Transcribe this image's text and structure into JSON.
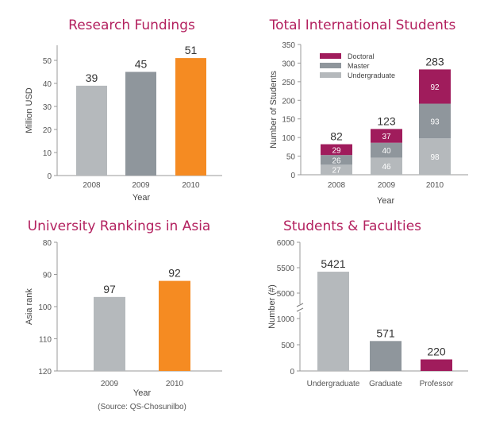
{
  "chart_data": [
    {
      "type": "bar",
      "title": "Research Fundings",
      "categories": [
        "2008",
        "2009",
        "2010"
      ],
      "values": [
        39,
        45,
        51
      ],
      "colors": [
        "#b5b9bc",
        "#8f969c",
        "#f58b22"
      ],
      "xlabel": "Year",
      "ylabel": "Million USD",
      "ylim": [
        0,
        55
      ],
      "yticks": [
        0,
        10,
        20,
        30,
        40,
        50
      ],
      "grid": false
    },
    {
      "type": "bar",
      "stacked": true,
      "title": "Total International Students",
      "categories": [
        "2008",
        "2009",
        "2010"
      ],
      "series": [
        {
          "name": "Undergraduate",
          "values": [
            27,
            46,
            98
          ],
          "color": "#b5b9bc"
        },
        {
          "name": "Master",
          "values": [
            26,
            40,
            93
          ],
          "color": "#8f969c"
        },
        {
          "name": "Doctoral",
          "values": [
            29,
            37,
            92
          ],
          "color": "#a01c5c"
        }
      ],
      "totals": [
        82,
        123,
        283
      ],
      "xlabel": "Year",
      "ylabel": "Number of Students",
      "ylim": [
        0,
        350
      ],
      "yticks": [
        0,
        50,
        100,
        150,
        200,
        250,
        300,
        350
      ],
      "legend": "top-left",
      "grid": false
    },
    {
      "type": "bar",
      "title": "University Rankings in Asia",
      "categories": [
        "2009",
        "2010"
      ],
      "values": [
        97,
        92
      ],
      "colors": [
        "#b5b9bc",
        "#f58b22"
      ],
      "xlabel": "Year",
      "ylabel": "Asia rank",
      "ylim": [
        120,
        80
      ],
      "y_inverted": true,
      "yticks": [
        80,
        90,
        100,
        110,
        120
      ],
      "note": "(Source: QS-Chosunilbo)",
      "grid": false
    },
    {
      "type": "bar",
      "title": "Students & Faculties",
      "categories": [
        "Undergraduate",
        "Graduate",
        "Professor"
      ],
      "values": [
        5421,
        571,
        220
      ],
      "colors": [
        "#b5b9bc",
        "#8f969c",
        "#a01c5c"
      ],
      "xlabel": "",
      "ylabel": "Number (#)",
      "ylim": [
        0,
        6000
      ],
      "axis_break": [
        1000,
        5000
      ],
      "yticks": [
        0,
        500,
        1000,
        5000,
        5500,
        6000
      ],
      "grid": false
    }
  ]
}
